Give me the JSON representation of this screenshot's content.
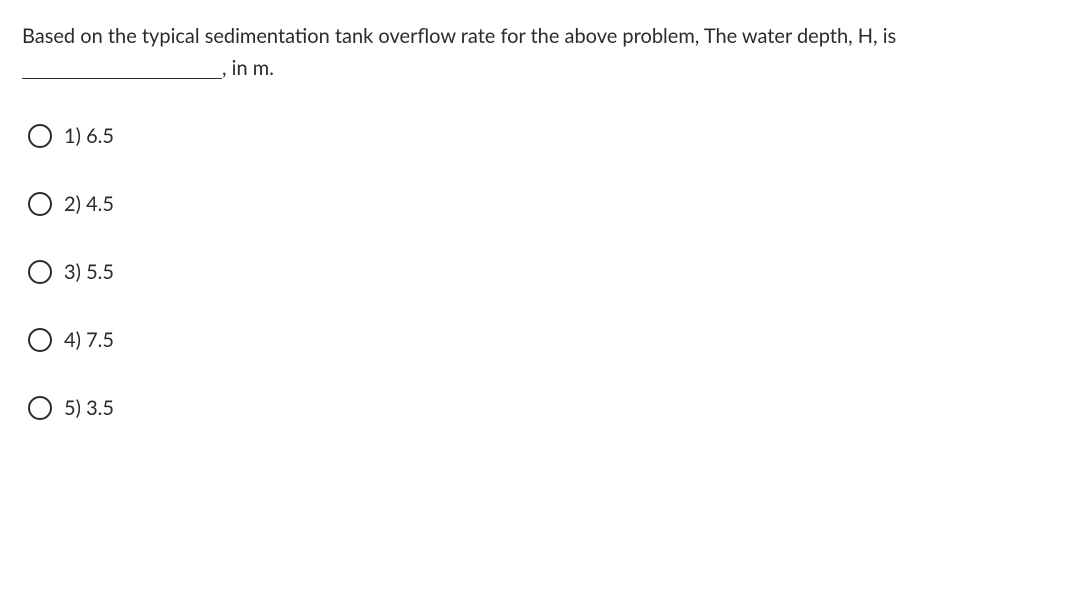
{
  "question": {
    "part1": "Based on the typical sedimentation tank overflow rate for the above problem, The water depth, H, is",
    "part2": ",   in m."
  },
  "options": [
    {
      "num": "1)",
      "val": "6.5"
    },
    {
      "num": "2)",
      "val": "4.5"
    },
    {
      "num": "3)",
      "val": "5.5"
    },
    {
      "num": "4)",
      "val": "7.5"
    },
    {
      "num": "5)",
      "val": "3.5"
    }
  ]
}
